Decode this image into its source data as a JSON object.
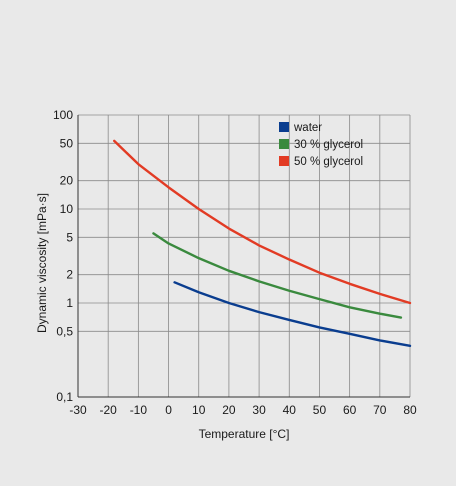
{
  "chart_data": {
    "type": "line",
    "title": "",
    "xlabel": "Temperature [°C]",
    "ylabel": "Dynamic viscosity [mPa·s]",
    "xlim": [
      -30,
      80
    ],
    "ylim": [
      0.1,
      100
    ],
    "yscale": "log",
    "grid": true,
    "legend_position": "top-right",
    "x_ticks": [
      {
        "value": -30,
        "label": "-30"
      },
      {
        "value": -20,
        "label": "-20"
      },
      {
        "value": -10,
        "label": "-10"
      },
      {
        "value": 0,
        "label": "0"
      },
      {
        "value": 10,
        "label": "10"
      },
      {
        "value": 20,
        "label": "20"
      },
      {
        "value": 30,
        "label": "30"
      },
      {
        "value": 40,
        "label": "40"
      },
      {
        "value": 50,
        "label": "50"
      },
      {
        "value": 60,
        "label": "60"
      },
      {
        "value": 70,
        "label": "70"
      },
      {
        "value": 80,
        "label": "80"
      }
    ],
    "y_ticks": [
      {
        "value": 0.1,
        "label": "0,1"
      },
      {
        "value": 0.5,
        "label": "0,5"
      },
      {
        "value": 1,
        "label": "1"
      },
      {
        "value": 2,
        "label": "2"
      },
      {
        "value": 5,
        "label": "5"
      },
      {
        "value": 10,
        "label": "10"
      },
      {
        "value": 20,
        "label": "20"
      },
      {
        "value": 50,
        "label": "50"
      },
      {
        "value": 100,
        "label": "100"
      }
    ],
    "series": [
      {
        "name": "water",
        "color": "#0a3d8f",
        "x": [
          2,
          10,
          20,
          30,
          40,
          50,
          60,
          70,
          80
        ],
        "y": [
          1.66,
          1.3,
          1.0,
          0.8,
          0.66,
          0.55,
          0.47,
          0.4,
          0.35
        ]
      },
      {
        "name": "30 % glycerol",
        "color": "#3a8a3e",
        "x": [
          -5,
          0,
          10,
          20,
          30,
          40,
          50,
          60,
          70,
          77
        ],
        "y": [
          5.5,
          4.3,
          3.0,
          2.2,
          1.7,
          1.35,
          1.1,
          0.9,
          0.77,
          0.7
        ]
      },
      {
        "name": "50 % glycerol",
        "color": "#e23b24",
        "x": [
          -18,
          -10,
          0,
          10,
          20,
          30,
          40,
          50,
          60,
          70,
          80
        ],
        "y": [
          53,
          30,
          17,
          10,
          6.2,
          4.1,
          2.9,
          2.1,
          1.6,
          1.25,
          1.0
        ]
      }
    ]
  }
}
